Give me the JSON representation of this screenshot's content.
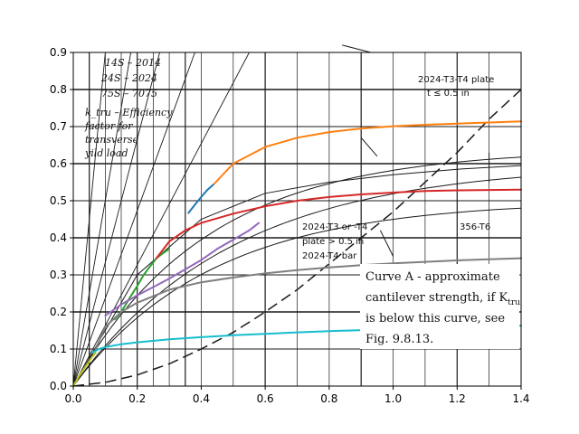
{
  "chart_data": {
    "type": "line",
    "title": "",
    "xlabel": "",
    "ylabel": "",
    "xlim": [
      0,
      1.4
    ],
    "ylim": [
      0,
      0.9
    ],
    "xticks": [
      "0.0",
      "0.2",
      "0.4",
      "0.6",
      "0.8",
      "1.0",
      "1.2",
      "1.4"
    ],
    "yticks": [
      "0.0",
      "0.1",
      "0.2",
      "0.3",
      "0.4",
      "0.5",
      "0.6",
      "0.7",
      "0.8",
      "0.9"
    ],
    "grid": true,
    "legend": "none",
    "annotations": {
      "alloy_1": "14S – 2014",
      "alloy_2": "24S – 2024",
      "alloy_3": "75S – 7075",
      "ktru_1": "k_tru – Efficiency",
      "ktru_2": "factor for",
      "ktru_3": "transverse",
      "ktru_4": "yild load",
      "plate_1": "2024-T3-T4 plate",
      "plate_2": "t ≤ 0.5 in",
      "alloy356": "356-T6",
      "bar_1": "2024-T3 or -T4",
      "bar_2": "plate > 0.5 in",
      "bar_3": "2024-T4 bar",
      "curveA_1": "Curve A - approximate",
      "curveA_2": "cantilever strength, if K",
      "curveA_sub": "tru",
      "curveA_3": "is below this curve, see",
      "curveA_4": "Fig. 9.8.13."
    },
    "series": [
      {
        "color": "#1f77b4",
        "x": [
          0.36,
          0.38,
          0.4,
          0.42,
          0.44
        ],
        "y": [
          0.467,
          0.489,
          0.51,
          0.53,
          0.545
        ]
      },
      {
        "color": "#ff7f0e",
        "x": [
          0.44,
          0.5,
          0.6,
          0.7,
          0.8,
          0.9,
          1.0,
          1.1,
          1.2,
          1.3,
          1.4
        ],
        "y": [
          0.545,
          0.6,
          0.645,
          0.67,
          0.685,
          0.695,
          0.701,
          0.705,
          0.708,
          0.711,
          0.714
        ]
      },
      {
        "color": "#2ca02c",
        "x": [
          0.13,
          0.15,
          0.18,
          0.2,
          0.22,
          0.24,
          0.26,
          0.28,
          0.3
        ],
        "y": [
          0.18,
          0.2,
          0.243,
          0.27,
          0.3,
          0.323,
          0.345,
          0.358,
          0.37
        ]
      },
      {
        "color": "#d62728",
        "x": [
          0.26,
          0.3,
          0.35,
          0.4,
          0.5,
          0.6,
          0.7,
          0.8,
          0.9,
          1.0,
          1.1,
          1.2,
          1.3,
          1.4
        ],
        "y": [
          0.345,
          0.39,
          0.42,
          0.44,
          0.465,
          0.485,
          0.5,
          0.51,
          0.517,
          0.522,
          0.526,
          0.528,
          0.529,
          0.53
        ]
      },
      {
        "color": "#9467bd",
        "x": [
          0.1,
          0.15,
          0.2,
          0.25,
          0.3,
          0.35,
          0.4,
          0.45,
          0.5,
          0.55,
          0.58
        ],
        "y": [
          0.19,
          0.22,
          0.245,
          0.267,
          0.29,
          0.315,
          0.34,
          0.37,
          0.395,
          0.42,
          0.44
        ]
      },
      {
        "color": "#7f7f7f",
        "x": [
          0.07,
          0.1,
          0.15,
          0.2,
          0.3,
          0.4,
          0.5,
          0.6,
          0.7,
          0.8,
          0.9,
          1.0,
          1.1,
          1.2,
          1.3,
          1.4
        ],
        "y": [
          0.1,
          0.16,
          0.2,
          0.225,
          0.26,
          0.28,
          0.293,
          0.304,
          0.313,
          0.32,
          0.326,
          0.331,
          0.335,
          0.339,
          0.342,
          0.345
        ]
      },
      {
        "color": "#17becf",
        "x": [
          0.06,
          0.08,
          0.1,
          0.15,
          0.2,
          0.3,
          0.4,
          0.5,
          0.6,
          0.7,
          0.8,
          0.9,
          1.0,
          1.1,
          1.2,
          1.3,
          1.4
        ],
        "y": [
          0.09,
          0.1,
          0.105,
          0.113,
          0.118,
          0.126,
          0.132,
          0.137,
          0.141,
          0.145,
          0.148,
          0.151,
          0.154,
          0.157,
          0.159,
          0.161,
          0.163
        ]
      },
      {
        "color": "#bcbd22",
        "x": [
          0.0,
          0.02,
          0.04,
          0.06,
          0.07
        ],
        "y": [
          0.0,
          0.03,
          0.055,
          0.08,
          0.09
        ]
      }
    ]
  }
}
